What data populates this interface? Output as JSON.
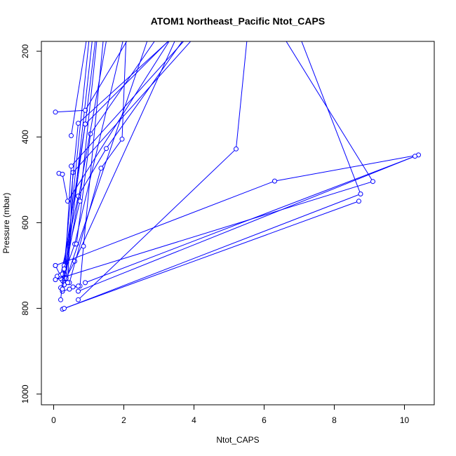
{
  "chart_data": {
    "type": "line",
    "title": "ATOM1 Northeast_Pacific Ntot_CAPS",
    "xlabel": "Ntot_CAPS",
    "ylabel": "Pressure (mbar)",
    "xlim": [
      -0.35,
      10.85
    ],
    "ylim": [
      1025,
      177
    ],
    "y_reversed": true,
    "xticks": [
      0,
      2,
      4,
      6,
      8,
      10
    ],
    "yticks": [
      200,
      400,
      600,
      800,
      1000
    ],
    "grid": false,
    "legend": "none",
    "colors": {
      "series": "#0000ff",
      "axes": "#000000",
      "background": "#ffffff"
    },
    "marker": "open-circle",
    "series": [
      {
        "points": [
          [
            0.05,
            700
          ],
          [
            0.2,
            725
          ],
          [
            0.3,
            740
          ],
          [
            1.05,
            140
          ]
        ]
      },
      {
        "points": [
          [
            0.1,
            725
          ],
          [
            0.25,
            735
          ],
          [
            0.35,
            730
          ],
          [
            1.2,
            100
          ]
        ]
      },
      {
        "points": [
          [
            0.2,
            730
          ],
          [
            0.3,
            720
          ],
          [
            0.6,
            650
          ],
          [
            2.05,
            150
          ]
        ]
      },
      {
        "points": [
          [
            0.35,
            730
          ],
          [
            0.6,
            690
          ],
          [
            3.6,
            150
          ]
        ]
      },
      {
        "points": [
          [
            0.05,
            342
          ],
          [
            0.9,
            338
          ],
          [
            2.5,
            120
          ]
        ]
      },
      {
        "points": [
          [
            0.5,
            397
          ],
          [
            1.0,
            140
          ]
        ]
      },
      {
        "points": [
          [
            0.25,
            760
          ],
          [
            0.9,
            370
          ],
          [
            4.2,
            100
          ]
        ]
      },
      {
        "points": [
          [
            0.65,
            650
          ],
          [
            1.05,
            393
          ],
          [
            3.1,
            150
          ]
        ]
      },
      {
        "points": [
          [
            0.2,
            722
          ],
          [
            0.7,
            538
          ],
          [
            1.5,
            427
          ],
          [
            3.9,
            150
          ]
        ]
      },
      {
        "points": [
          [
            0.45,
            740
          ],
          [
            1.35,
            473
          ],
          [
            1.95,
            405
          ],
          [
            2.1,
            100
          ]
        ]
      },
      {
        "points": [
          [
            0.15,
            485
          ],
          [
            0.25,
            487
          ],
          [
            0.4,
            550
          ],
          [
            3.5,
            150
          ]
        ]
      },
      {
        "points": [
          [
            0.3,
            740
          ],
          [
            0.5,
            468
          ],
          [
            4.0,
            150
          ]
        ]
      },
      {
        "points": [
          [
            0.4,
            740
          ],
          [
            0.55,
            483
          ],
          [
            4.2,
            150
          ]
        ]
      },
      {
        "points": [
          [
            0.7,
            780
          ],
          [
            5.2,
            428
          ],
          [
            5.6,
            100
          ]
        ]
      },
      {
        "points": [
          [
            0.75,
            748
          ],
          [
            0.85,
            655
          ],
          [
            1.5,
            100
          ]
        ]
      },
      {
        "points": [
          [
            0.25,
            720
          ],
          [
            0.9,
            370
          ],
          [
            1.3,
            100
          ]
        ]
      },
      {
        "points": [
          [
            0.05,
            700
          ],
          [
            6.3,
            503
          ],
          [
            10.4,
            442
          ],
          [
            0.9,
            740
          ]
        ]
      },
      {
        "points": [
          [
            0.05,
            733
          ],
          [
            9.1,
            504
          ],
          [
            6.2,
            120
          ]
        ]
      },
      {
        "points": [
          [
            0.25,
            802
          ],
          [
            8.75,
            533
          ],
          [
            6.8,
            120
          ]
        ]
      },
      {
        "points": [
          [
            0.3,
            800
          ],
          [
            8.7,
            550
          ]
        ]
      },
      {
        "points": [
          [
            0.7,
            760
          ],
          [
            10.3,
            445
          ]
        ]
      },
      {
        "points": [
          [
            0.25,
            760
          ],
          [
            0.7,
            748
          ],
          [
            0.55,
            750
          ],
          [
            0.45,
            755
          ]
        ]
      },
      {
        "points": [
          [
            0.2,
            780
          ],
          [
            0.3,
            700
          ],
          [
            0.7,
            368
          ],
          [
            3.9,
            130
          ]
        ]
      },
      {
        "points": [
          [
            0.3,
            708
          ],
          [
            0.75,
            550
          ],
          [
            1.3,
            120
          ]
        ]
      },
      {
        "points": [
          [
            0.2,
            752
          ],
          [
            0.3,
            745
          ],
          [
            2.9,
            120
          ]
        ]
      },
      {
        "points": [
          [
            0.25,
            755
          ],
          [
            1.6,
            130
          ]
        ]
      }
    ]
  }
}
